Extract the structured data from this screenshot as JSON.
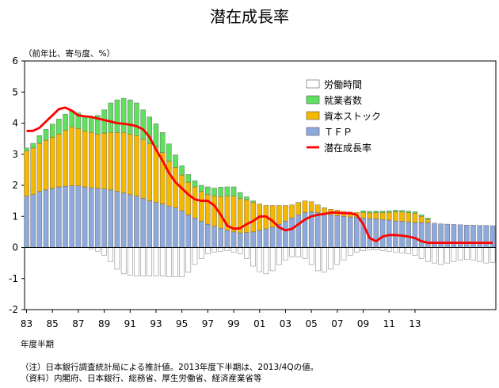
{
  "chart_data": {
    "type": "bar",
    "title": "潜在成長率",
    "ylabel": "（前年比、寄与度、%）",
    "xlabel": "年度半期",
    "ylim": [
      -2,
      6
    ],
    "yticks": [
      "-2",
      "-1",
      "0",
      "1",
      "2",
      "3",
      "4",
      "5",
      "6"
    ],
    "xtick_labels": [
      "83",
      "85",
      "87",
      "89",
      "91",
      "93",
      "95",
      "97",
      "99",
      "01",
      "03",
      "05",
      "07",
      "09",
      "11",
      "13"
    ],
    "stacked": true,
    "legend_position": "top-right",
    "series": [
      {
        "name": "労働時間",
        "color": "#ffffff",
        "values": [
          0.0,
          0.0,
          0.0,
          0.0,
          0.0,
          0.0,
          0.0,
          0.0,
          0.0,
          0.0,
          -0.05,
          -0.12,
          -0.25,
          -0.45,
          -0.7,
          -0.85,
          -0.9,
          -0.92,
          -0.92,
          -0.92,
          -0.92,
          -0.92,
          -0.95,
          -0.95,
          -0.95,
          -0.8,
          -0.55,
          -0.35,
          -0.2,
          -0.15,
          -0.12,
          -0.1,
          -0.15,
          -0.2,
          -0.35,
          -0.6,
          -0.78,
          -0.85,
          -0.75,
          -0.55,
          -0.4,
          -0.3,
          -0.3,
          -0.35,
          -0.55,
          -0.75,
          -0.8,
          -0.7,
          -0.55,
          -0.4,
          -0.25,
          -0.15,
          -0.1,
          -0.08,
          -0.08,
          -0.1,
          -0.12,
          -0.15,
          -0.18,
          -0.2,
          -0.25,
          -0.35,
          -0.45,
          -0.5,
          -0.55,
          -0.5,
          -0.45,
          -0.4,
          -0.38,
          -0.4,
          -0.45,
          -0.5,
          -0.48
        ]
      },
      {
        "name": "就業者数",
        "color": "#5fe05f",
        "values": [
          0.1,
          0.15,
          0.25,
          0.35,
          0.42,
          0.48,
          0.52,
          0.52,
          0.5,
          0.45,
          0.5,
          0.6,
          0.75,
          0.95,
          1.05,
          1.1,
          1.1,
          1.05,
          0.95,
          0.85,
          0.75,
          0.65,
          0.55,
          0.4,
          0.3,
          0.25,
          0.2,
          0.2,
          0.25,
          0.25,
          0.3,
          0.3,
          0.3,
          0.2,
          0.1,
          0.05,
          0.0,
          0.0,
          0.0,
          0.0,
          0.0,
          0.0,
          0.0,
          0.0,
          0.0,
          0.0,
          0.0,
          0.0,
          0.0,
          0.0,
          0.0,
          0.0,
          0.05,
          0.05,
          0.05,
          0.05,
          0.05,
          0.05,
          0.05,
          0.05,
          0.05,
          0.05,
          0.05,
          0.0,
          0.0,
          0.0,
          0.0,
          0.0,
          0.0,
          0.0,
          0.0,
          0.0,
          0.0
        ]
      },
      {
        "name": "資本ストック",
        "color": "#f5b800",
        "values": [
          1.45,
          1.5,
          1.55,
          1.6,
          1.65,
          1.7,
          1.8,
          1.9,
          1.85,
          1.8,
          1.78,
          1.75,
          1.8,
          1.85,
          1.9,
          1.95,
          1.95,
          1.95,
          1.9,
          1.85,
          1.78,
          1.65,
          1.45,
          1.3,
          1.15,
          1.05,
          1.0,
          0.95,
          0.95,
          0.98,
          1.02,
          1.1,
          1.15,
          1.1,
          1.05,
          0.95,
          0.85,
          0.75,
          0.7,
          0.6,
          0.5,
          0.42,
          0.4,
          0.38,
          0.32,
          0.25,
          0.2,
          0.18,
          0.18,
          0.16,
          0.16,
          0.16,
          0.18,
          0.18,
          0.2,
          0.22,
          0.25,
          0.3,
          0.3,
          0.3,
          0.3,
          0.2,
          0.1,
          0.0,
          0.0,
          0.0,
          0.0,
          0.0,
          0.0,
          0.0,
          0.0,
          0.0,
          0.0
        ]
      },
      {
        "name": "ＴＦＰ",
        "color": "#8ea9db",
        "values": [
          1.65,
          1.7,
          1.8,
          1.85,
          1.9,
          1.95,
          1.97,
          1.98,
          1.98,
          1.95,
          1.92,
          1.9,
          1.88,
          1.85,
          1.8,
          1.75,
          1.7,
          1.65,
          1.58,
          1.5,
          1.45,
          1.4,
          1.33,
          1.28,
          1.18,
          1.05,
          0.95,
          0.85,
          0.75,
          0.68,
          0.62,
          0.55,
          0.5,
          0.47,
          0.48,
          0.5,
          0.55,
          0.6,
          0.65,
          0.75,
          0.85,
          0.95,
          1.05,
          1.12,
          1.15,
          1.12,
          1.08,
          1.05,
          1.02,
          1.0,
          0.98,
          0.97,
          0.95,
          0.93,
          0.92,
          0.9,
          0.88,
          0.85,
          0.84,
          0.82,
          0.8,
          0.8,
          0.8,
          0.78,
          0.76,
          0.75,
          0.74,
          0.73,
          0.72,
          0.72,
          0.71,
          0.71,
          0.7
        ]
      },
      {
        "name": "潜在成長率",
        "color": "#ff0000",
        "type": "line",
        "values": [
          3.75,
          3.75,
          3.85,
          4.05,
          4.25,
          4.45,
          4.5,
          4.4,
          4.25,
          4.22,
          4.2,
          4.15,
          4.1,
          4.05,
          4.0,
          3.98,
          3.95,
          3.9,
          3.8,
          3.55,
          3.15,
          2.8,
          2.4,
          2.1,
          1.9,
          1.7,
          1.55,
          1.5,
          1.5,
          1.35,
          1.05,
          0.7,
          0.6,
          0.62,
          0.75,
          0.85,
          1.0,
          1.0,
          0.85,
          0.65,
          0.55,
          0.6,
          0.75,
          0.9,
          1.0,
          1.05,
          1.08,
          1.12,
          1.12,
          1.1,
          1.1,
          1.05,
          0.75,
          0.3,
          0.2,
          0.35,
          0.4,
          0.4,
          0.38,
          0.35,
          0.3,
          0.2,
          0.15,
          0.15,
          0.15,
          0.15,
          0.15,
          0.15,
          0.15,
          0.15,
          0.15,
          0.15,
          0.15
        ]
      }
    ]
  },
  "notes": [
    "（注）日本銀行調査統計局による推計値。2013年度下半期は、2013/4Qの値。",
    "（資料）内閣府、日本銀行、総務省、厚生労働省、経済産業省等"
  ]
}
